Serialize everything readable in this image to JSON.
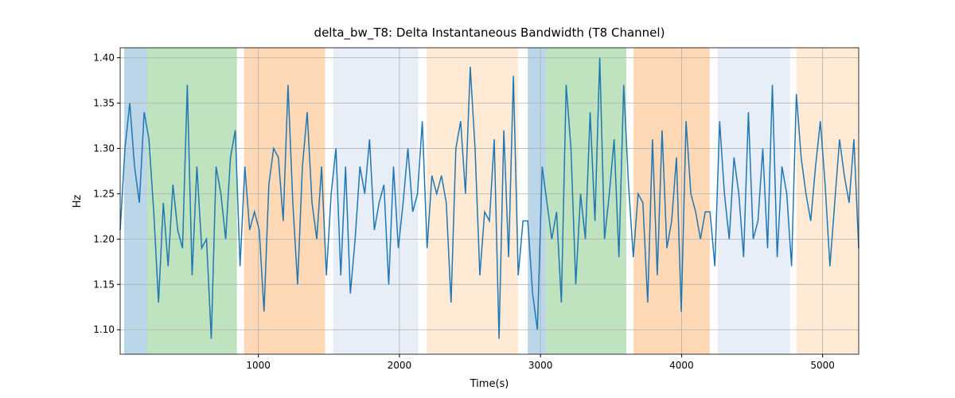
{
  "chart_data": {
    "type": "line",
    "title": "delta_bw_T8: Delta Instantaneous Bandwidth (T8 Channel)",
    "x_label": "Time(s)",
    "y_label": "Hz",
    "x": [
      20,
      54,
      88,
      122,
      156,
      190,
      224,
      258,
      292,
      326,
      360,
      394,
      428,
      462,
      496,
      530,
      564,
      598,
      632,
      666,
      700,
      734,
      768,
      802,
      836,
      870,
      904,
      938,
      972,
      1006,
      1040,
      1074,
      1108,
      1142,
      1176,
      1210,
      1244,
      1278,
      1312,
      1346,
      1380,
      1414,
      1448,
      1482,
      1516,
      1550,
      1584,
      1618,
      1652,
      1686,
      1720,
      1754,
      1788,
      1822,
      1856,
      1890,
      1924,
      1958,
      1992,
      2026,
      2060,
      2094,
      2128,
      2162,
      2196,
      2230,
      2264,
      2298,
      2332,
      2366,
      2400,
      2434,
      2468,
      2502,
      2536,
      2570,
      2604,
      2638,
      2672,
      2706,
      2740,
      2774,
      2808,
      2842,
      2876,
      2910,
      2944,
      2978,
      3012,
      3046,
      3080,
      3114,
      3148,
      3182,
      3216,
      3250,
      3284,
      3318,
      3352,
      3386,
      3420,
      3454,
      3488,
      3522,
      3556,
      3590,
      3624,
      3658,
      3692,
      3726,
      3760,
      3794,
      3828,
      3862,
      3896,
      3930,
      3964,
      3998,
      4032,
      4066,
      4100,
      4134,
      4168,
      4202,
      4236,
      4270,
      4304,
      4338,
      4372,
      4406,
      4440,
      4474,
      4508,
      4542,
      4576,
      4610,
      4644,
      4678,
      4712,
      4746,
      4780,
      4814,
      4848,
      4882,
      4916,
      4950,
      4984,
      5018,
      5052,
      5086,
      5120,
      5154,
      5188,
      5222,
      5256
    ],
    "series": [
      {
        "color": "#1f77b4",
        "values": [
          1.21,
          1.3,
          1.35,
          1.28,
          1.24,
          1.34,
          1.31,
          1.23,
          1.13,
          1.24,
          1.17,
          1.26,
          1.21,
          1.19,
          1.37,
          1.16,
          1.28,
          1.19,
          1.2,
          1.09,
          1.28,
          1.25,
          1.2,
          1.29,
          1.32,
          1.17,
          1.28,
          1.21,
          1.23,
          1.21,
          1.12,
          1.26,
          1.3,
          1.29,
          1.22,
          1.37,
          1.24,
          1.15,
          1.28,
          1.34,
          1.24,
          1.2,
          1.28,
          1.16,
          1.25,
          1.3,
          1.16,
          1.28,
          1.14,
          1.2,
          1.28,
          1.25,
          1.31,
          1.21,
          1.24,
          1.26,
          1.15,
          1.28,
          1.19,
          1.24,
          1.3,
          1.23,
          1.25,
          1.33,
          1.19,
          1.27,
          1.25,
          1.27,
          1.24,
          1.13,
          1.3,
          1.33,
          1.25,
          1.39,
          1.3,
          1.16,
          1.23,
          1.22,
          1.31,
          1.09,
          1.32,
          1.18,
          1.38,
          1.16,
          1.22,
          1.22,
          1.14,
          1.1,
          1.28,
          1.24,
          1.2,
          1.23,
          1.13,
          1.37,
          1.3,
          1.15,
          1.25,
          1.2,
          1.34,
          1.22,
          1.4,
          1.2,
          1.25,
          1.31,
          1.18,
          1.37,
          1.26,
          1.18,
          1.25,
          1.24,
          1.13,
          1.31,
          1.16,
          1.32,
          1.19,
          1.22,
          1.29,
          1.12,
          1.33,
          1.25,
          1.23,
          1.2,
          1.23,
          1.23,
          1.17,
          1.33,
          1.25,
          1.2,
          1.29,
          1.25,
          1.18,
          1.34,
          1.2,
          1.22,
          1.3,
          1.19,
          1.37,
          1.18,
          1.28,
          1.25,
          1.17,
          1.36,
          1.29,
          1.25,
          1.22,
          1.28,
          1.33,
          1.26,
          1.17,
          1.24,
          1.31,
          1.27,
          1.24,
          1.31,
          1.19
        ]
      }
    ],
    "spans": [
      {
        "start": 48,
        "end": 211,
        "color": "#1f77b4"
      },
      {
        "start": 211,
        "end": 848,
        "color": "#2ca02c"
      },
      {
        "start": 898,
        "end": 1473,
        "color": "#ff7f0e"
      },
      {
        "start": 1530,
        "end": 2133,
        "color": "#aec7e8"
      },
      {
        "start": 2194,
        "end": 2842,
        "color": "#ffbb78"
      },
      {
        "start": 2910,
        "end": 3040,
        "color": "#1f77b4"
      },
      {
        "start": 3040,
        "end": 3608,
        "color": "#2ca02c"
      },
      {
        "start": 3659,
        "end": 4200,
        "color": "#ff7f0e"
      },
      {
        "start": 4256,
        "end": 4769,
        "color": "#aec7e8"
      },
      {
        "start": 4814,
        "end": 5256,
        "color": "#ffbb78"
      }
    ],
    "xlim": [
      20,
      5256
    ],
    "ylim": [
      1.073,
      1.411
    ],
    "xticks": [
      1000,
      2000,
      3000,
      4000,
      5000
    ],
    "yticks": [
      {
        "value": 1.1,
        "label": "1.10"
      },
      {
        "value": 1.15,
        "label": "1.15"
      },
      {
        "value": 1.2,
        "label": "1.20"
      },
      {
        "value": 1.25,
        "label": "1.25"
      },
      {
        "value": 1.3,
        "label": "1.30"
      },
      {
        "value": 1.35,
        "label": "1.35"
      },
      {
        "value": 1.4,
        "label": "1.40"
      }
    ],
    "grid": true
  }
}
